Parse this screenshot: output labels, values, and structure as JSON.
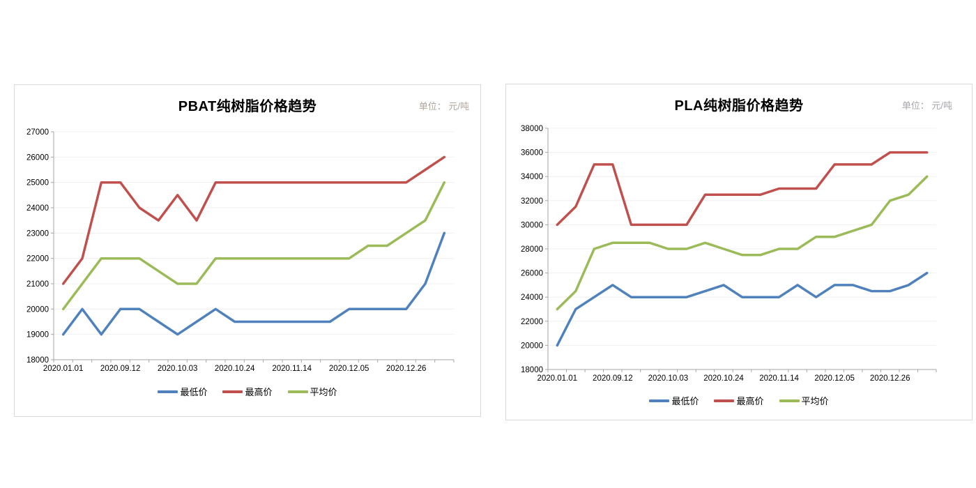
{
  "style": {
    "background": "#ffffff",
    "panel_border": "#d9d9d9",
    "axis_color": "#a6a6a6",
    "grid_color": "#f0f0f0",
    "tick_text_color": "#000000",
    "title_color": "#000000"
  },
  "chart_data": [
    {
      "type": "line",
      "title": "PBAT纯树脂价格趋势",
      "unit_label": "单位： 元/吨",
      "unit_label_color": "#b1a69b",
      "grid": "horizontal",
      "legend_position": "bottom",
      "ylim": [
        18000,
        27000
      ],
      "ytick_step": 1000,
      "label_interval": 3,
      "tick_labels": [
        "2020.01.01",
        "2020.09.12",
        "2020.10.03",
        "2020.10.24",
        "2020.11.14",
        "2020.12.05",
        "2020.12.26"
      ],
      "categories": [
        "2020.01.01",
        "",
        "",
        "2020.09.12",
        "",
        "",
        "2020.10.03",
        "",
        "",
        "2020.10.24",
        "",
        "",
        "2020.11.14",
        "",
        "",
        "2020.12.05",
        "",
        "",
        "2020.12.26",
        "",
        ""
      ],
      "series": [
        {
          "name": "最低价",
          "color": "#4F81BD",
          "values": [
            19000,
            20000,
            19000,
            20000,
            20000,
            19500,
            19000,
            19500,
            20000,
            19500,
            19500,
            19500,
            19500,
            19500,
            19500,
            20000,
            20000,
            20000,
            20000,
            21000,
            23000
          ]
        },
        {
          "name": "最高价",
          "color": "#C0504D",
          "values": [
            21000,
            22000,
            25000,
            25000,
            24000,
            23500,
            24500,
            23500,
            25000,
            25000,
            25000,
            25000,
            25000,
            25000,
            25000,
            25000,
            25000,
            25000,
            25000,
            25500,
            26000
          ]
        },
        {
          "name": "平均价",
          "color": "#9BBB59",
          "values": [
            20000,
            21000,
            22000,
            22000,
            22000,
            21500,
            21000,
            21000,
            22000,
            22000,
            22000,
            22000,
            22000,
            22000,
            22000,
            22000,
            22500,
            22500,
            23000,
            23500,
            25000
          ]
        }
      ]
    },
    {
      "type": "line",
      "title": "PLA纯树脂价格趋势",
      "unit_label": "单位： 元/吨",
      "unit_label_color": "#a6a6ad",
      "grid": "horizontal",
      "legend_position": "bottom",
      "ylim": [
        18000,
        38000
      ],
      "ytick_step": 2000,
      "label_interval": 3,
      "tick_labels": [
        "2020.01.01",
        "2020.09.12",
        "2020.10.03",
        "2020.10.24",
        "2020.11.14",
        "2020.12.05",
        "2020.12.26"
      ],
      "categories": [
        "2020.01.01",
        "",
        "",
        "2020.09.12",
        "",
        "",
        "2020.10.03",
        "",
        "",
        "2020.10.24",
        "",
        "",
        "2020.11.14",
        "",
        "",
        "2020.12.05",
        "",
        "",
        "2020.12.26",
        "",
        ""
      ],
      "series": [
        {
          "name": "最低价",
          "color": "#4F81BD",
          "values": [
            20000,
            23000,
            24000,
            25000,
            24000,
            24000,
            24000,
            24000,
            24500,
            25000,
            24000,
            24000,
            24000,
            25000,
            24000,
            25000,
            25000,
            24500,
            24500,
            25000,
            26000
          ]
        },
        {
          "name": "最高价",
          "color": "#C0504D",
          "values": [
            30000,
            31500,
            35000,
            35000,
            30000,
            30000,
            30000,
            30000,
            32500,
            32500,
            32500,
            32500,
            33000,
            33000,
            33000,
            35000,
            35000,
            35000,
            36000,
            36000,
            36000
          ]
        },
        {
          "name": "平均价",
          "color": "#9BBB59",
          "values": [
            23000,
            24500,
            28000,
            28500,
            28500,
            28500,
            28000,
            28000,
            28500,
            28000,
            27500,
            27500,
            28000,
            28000,
            29000,
            29000,
            29500,
            30000,
            32000,
            32500,
            34000
          ]
        }
      ]
    }
  ]
}
